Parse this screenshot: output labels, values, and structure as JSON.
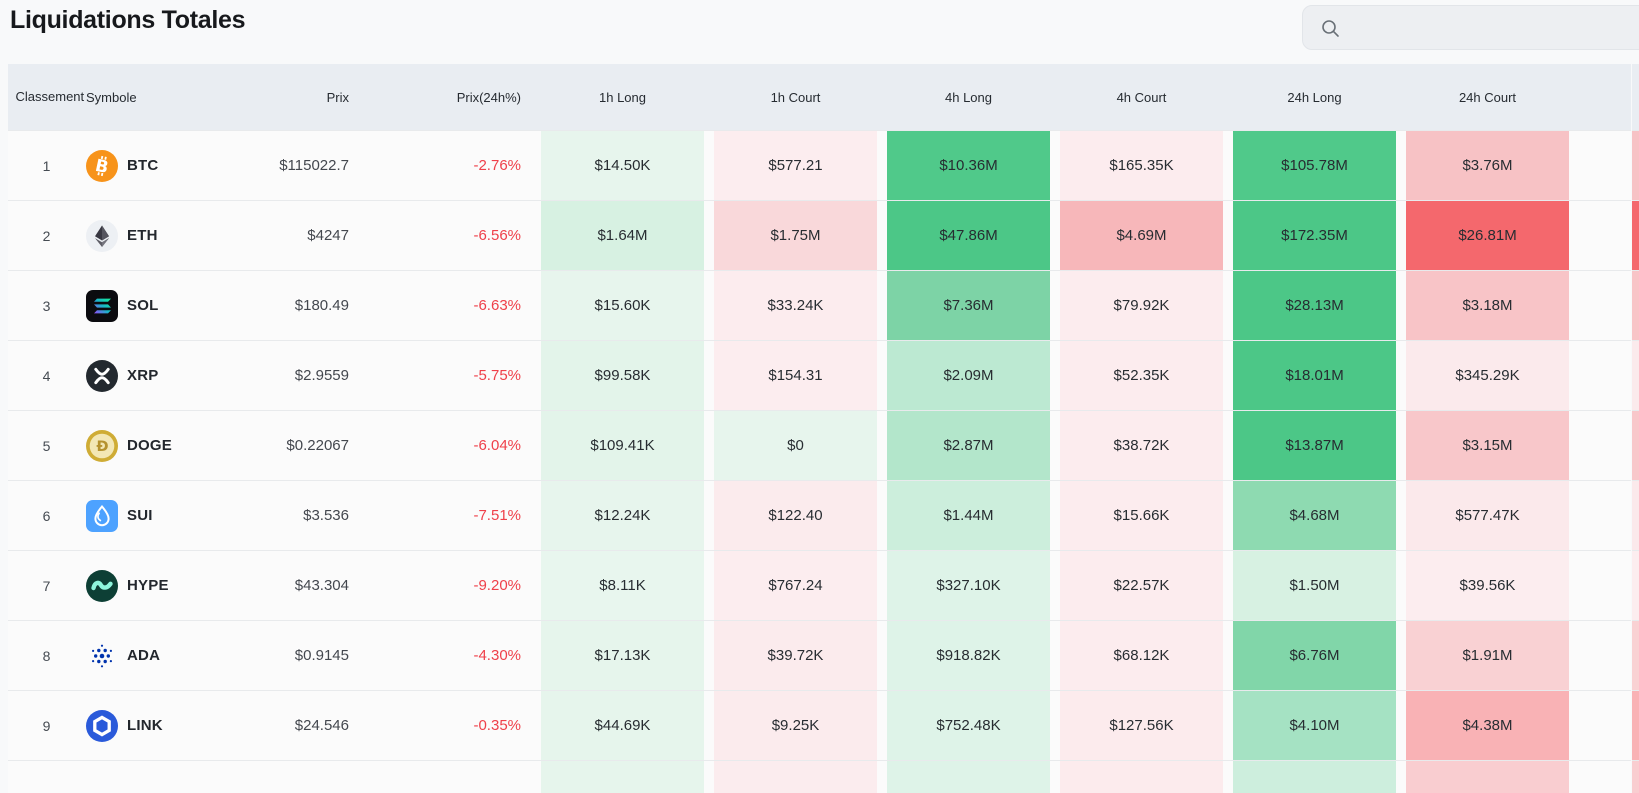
{
  "page": {
    "title": "Liquidations Totales"
  },
  "search": {
    "placeholder": "",
    "value": ""
  },
  "colors": {
    "header_bg": "#e9edf2",
    "strong_long_green": "#4cc787",
    "strong_short_red": "#f4686d",
    "negative_change_text": "#ef404a"
  },
  "table": {
    "headers": [
      {
        "key": "rank",
        "label": "Classement"
      },
      {
        "key": "symbol",
        "label": "Symbole"
      },
      {
        "key": "price",
        "label": "Prix"
      },
      {
        "key": "change",
        "label": "Prix(24h%)"
      },
      {
        "key": "1h-long",
        "label": "1h Long"
      },
      {
        "key": "1h-court",
        "label": "1h Court"
      },
      {
        "key": "4h-long",
        "label": "4h Long"
      },
      {
        "key": "4h-court",
        "label": "4h Court"
      },
      {
        "key": "24h-long",
        "label": "24h Long"
      },
      {
        "key": "24h-court",
        "label": "24h Court"
      }
    ],
    "rows": [
      {
        "rank": "1",
        "symbol": "BTC",
        "icon": "btc-icon",
        "price": "$115022.7",
        "change": "-2.76%",
        "cells": [
          {
            "value": "$14.50K",
            "bg": "#e7f5ed"
          },
          {
            "value": "$577.21",
            "bg": "#fcedef"
          },
          {
            "value": "$10.36M",
            "bg": "#50c98a"
          },
          {
            "value": "$165.35K",
            "bg": "#fcecee"
          },
          {
            "value": "$105.78M",
            "bg": "#50c98a"
          },
          {
            "value": "$3.76M",
            "bg": "#f7c2c5"
          }
        ],
        "edge": "#f7c2c5"
      },
      {
        "rank": "2",
        "symbol": "ETH",
        "icon": "eth-icon",
        "price": "$4247",
        "change": "-6.56%",
        "cells": [
          {
            "value": "$1.64M",
            "bg": "#d7f1e2"
          },
          {
            "value": "$1.75M",
            "bg": "#f9d8da"
          },
          {
            "value": "$47.86M",
            "bg": "#4cc787"
          },
          {
            "value": "$4.69M",
            "bg": "#f7b7ba"
          },
          {
            "value": "$172.35M",
            "bg": "#4cc787"
          },
          {
            "value": "$26.81M",
            "bg": "#f4686d"
          }
        ],
        "edge": "#f4686d"
      },
      {
        "rank": "3",
        "symbol": "SOL",
        "icon": "sol-icon",
        "price": "$180.49",
        "change": "-6.63%",
        "cells": [
          {
            "value": "$15.60K",
            "bg": "#e7f5ed"
          },
          {
            "value": "$33.24K",
            "bg": "#fcecee"
          },
          {
            "value": "$7.36M",
            "bg": "#7dd3a6"
          },
          {
            "value": "$79.92K",
            "bg": "#fcecee"
          },
          {
            "value": "$28.13M",
            "bg": "#4cc787"
          },
          {
            "value": "$3.18M",
            "bg": "#f8c4c7"
          }
        ],
        "edge": "#f8c4c7"
      },
      {
        "rank": "4",
        "symbol": "XRP",
        "icon": "xrp-icon",
        "price": "$2.9559",
        "change": "-5.75%",
        "cells": [
          {
            "value": "$99.58K",
            "bg": "#e3f4ea"
          },
          {
            "value": "$154.31",
            "bg": "#fcedef"
          },
          {
            "value": "$2.09M",
            "bg": "#bce9d2"
          },
          {
            "value": "$52.35K",
            "bg": "#fcecee"
          },
          {
            "value": "$18.01M",
            "bg": "#4cc787"
          },
          {
            "value": "$345.29K",
            "bg": "#fbeaec"
          }
        ],
        "edge": "#fbeaec"
      },
      {
        "rank": "5",
        "symbol": "DOGE",
        "icon": "doge-icon",
        "price": "$0.22067",
        "change": "-6.04%",
        "cells": [
          {
            "value": "$109.41K",
            "bg": "#e3f4ea"
          },
          {
            "value": "$0",
            "bg": "#e7f5ed"
          },
          {
            "value": "$2.87M",
            "bg": "#b3e6cb"
          },
          {
            "value": "$38.72K",
            "bg": "#fcecee"
          },
          {
            "value": "$13.87M",
            "bg": "#4cc787"
          },
          {
            "value": "$3.15M",
            "bg": "#f8c7ca"
          }
        ],
        "edge": "#f8c7ca"
      },
      {
        "rank": "6",
        "symbol": "SUI",
        "icon": "sui-icon",
        "price": "$3.536",
        "change": "-7.51%",
        "cells": [
          {
            "value": "$12.24K",
            "bg": "#e7f5ed"
          },
          {
            "value": "$122.40",
            "bg": "#fbebed"
          },
          {
            "value": "$1.44M",
            "bg": "#cceedc"
          },
          {
            "value": "$15.66K",
            "bg": "#fcecee"
          },
          {
            "value": "$4.68M",
            "bg": "#8edab1"
          },
          {
            "value": "$577.47K",
            "bg": "#fbe9eb"
          }
        ],
        "edge": "#fbe9eb"
      },
      {
        "rank": "7",
        "symbol": "HYPE",
        "icon": "hype-icon",
        "price": "$43.304",
        "change": "-9.20%",
        "cells": [
          {
            "value": "$8.11K",
            "bg": "#e8f6ee"
          },
          {
            "value": "$767.24",
            "bg": "#fcedef"
          },
          {
            "value": "$327.10K",
            "bg": "#def3e8"
          },
          {
            "value": "$22.57K",
            "bg": "#fcecee"
          },
          {
            "value": "$1.50M",
            "bg": "#d7f1e2"
          },
          {
            "value": "$39.56K",
            "bg": "#fcedef"
          }
        ],
        "edge": "#fcedef"
      },
      {
        "rank": "8",
        "symbol": "ADA",
        "icon": "ada-icon",
        "price": "$0.9145",
        "change": "-4.30%",
        "cells": [
          {
            "value": "$17.13K",
            "bg": "#e6f5ec"
          },
          {
            "value": "$39.72K",
            "bg": "#fbebed"
          },
          {
            "value": "$918.82K",
            "bg": "#def3e8"
          },
          {
            "value": "$68.12K",
            "bg": "#fcecee"
          },
          {
            "value": "$6.76M",
            "bg": "#81d6a9"
          },
          {
            "value": "$1.91M",
            "bg": "#f9d1d3"
          }
        ],
        "edge": "#f9d1d3"
      },
      {
        "rank": "9",
        "symbol": "LINK",
        "icon": "link-icon",
        "price": "$24.546",
        "change": "-0.35%",
        "cells": [
          {
            "value": "$44.69K",
            "bg": "#e6f5ec"
          },
          {
            "value": "$9.25K",
            "bg": "#fbebed"
          },
          {
            "value": "$752.48K",
            "bg": "#def3e8"
          },
          {
            "value": "$127.56K",
            "bg": "#fcebed"
          },
          {
            "value": "$4.10M",
            "bg": "#a5e2c3"
          },
          {
            "value": "$4.38M",
            "bg": "#f9b2b5"
          }
        ],
        "edge": "#f9b2b5"
      }
    ],
    "partial_row": {
      "cells": [
        "#e6f5ec",
        "#fbecee",
        "#def3e8",
        "#fcebed",
        "#cdeedd",
        "#f9cdd0"
      ],
      "edge": "#f9cdd0"
    }
  }
}
